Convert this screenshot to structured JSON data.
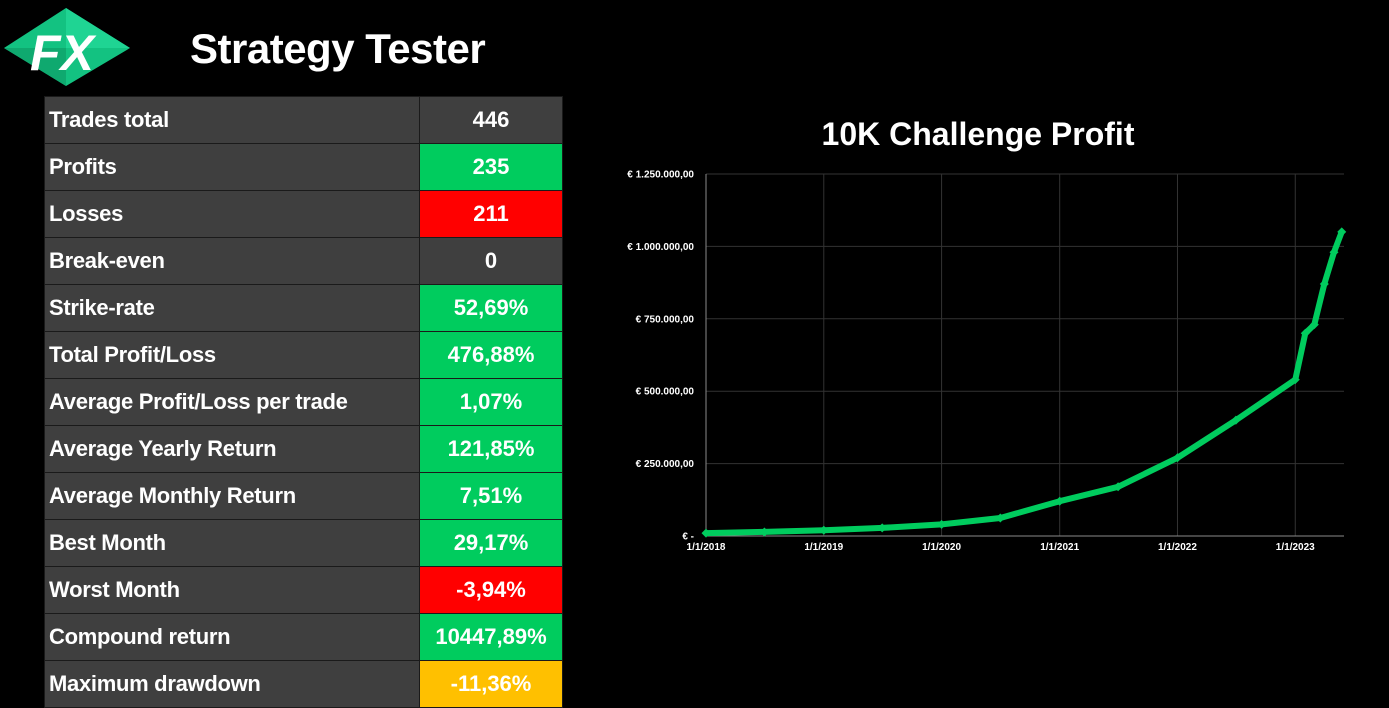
{
  "header": {
    "logo_text": "FX",
    "title": "Strategy Tester"
  },
  "colors": {
    "neutral": "#3f3f3f",
    "good": "#00cc5e",
    "bad": "#ff0000",
    "warn": "#ffc000",
    "series": "#00cc5e",
    "grid": "#333333"
  },
  "stats": [
    {
      "label": "Trades total",
      "value": "446",
      "status": "neutral"
    },
    {
      "label": "Profits",
      "value": "235",
      "status": "good"
    },
    {
      "label": "Losses",
      "value": "211",
      "status": "bad"
    },
    {
      "label": "Break-even",
      "value": "0",
      "status": "neutral"
    },
    {
      "label": "Strike-rate",
      "value": "52,69%",
      "status": "good"
    },
    {
      "label": "Total Profit/Loss",
      "value": "476,88%",
      "status": "good"
    },
    {
      "label": "Average Profit/Loss per trade",
      "value": "1,07%",
      "status": "good"
    },
    {
      "label": "Average Yearly Return",
      "value": "121,85%",
      "status": "good"
    },
    {
      "label": "Average Monthly Return",
      "value": "7,51%",
      "status": "good"
    },
    {
      "label": "Best Month",
      "value": "29,17%",
      "status": "good"
    },
    {
      "label": "Worst Month",
      "value": "-3,94%",
      "status": "bad"
    },
    {
      "label": "Compound return",
      "value": "10447,89%",
      "status": "good"
    },
    {
      "label": "Maximum drawdown",
      "value": "-11,36%",
      "status": "warn"
    }
  ],
  "chart_data": {
    "type": "scatter",
    "title": "10K Challenge Profit",
    "xlabel": "",
    "ylabel": "",
    "x_range": [
      "2018-01-01",
      "2023-06-01"
    ],
    "x_ticks": [
      "2018-01-01",
      "2019-01-01",
      "2020-01-01",
      "2021-01-01",
      "2022-01-01",
      "2023-01-01"
    ],
    "x_tick_labels": [
      "1/1/2018",
      "1/1/2019",
      "1/1/2020",
      "1/1/2021",
      "1/1/2022",
      "1/1/2023"
    ],
    "ylim": [
      0,
      1250000
    ],
    "y_ticks": [
      0,
      250000,
      500000,
      750000,
      1000000,
      1250000
    ],
    "y_tick_labels": [
      "€ -",
      "€ 250.000,00",
      "€ 500.000,00",
      "€ 750.000,00",
      "€ 1.000.000,00",
      "€ 1.250.000,00"
    ],
    "grid": true,
    "legend": false,
    "marker": "diamond",
    "anchor_points": [
      [
        "2018-01-01",
        10000
      ],
      [
        "2018-07-01",
        14000
      ],
      [
        "2019-01-01",
        20000
      ],
      [
        "2019-07-01",
        28000
      ],
      [
        "2020-01-01",
        40000
      ],
      [
        "2020-07-01",
        62000
      ],
      [
        "2021-01-01",
        120000
      ],
      [
        "2021-07-01",
        170000
      ],
      [
        "2022-01-01",
        270000
      ],
      [
        "2022-07-01",
        400000
      ],
      [
        "2023-01-01",
        540000
      ],
      [
        "2023-02-01",
        700000
      ],
      [
        "2023-03-01",
        730000
      ],
      [
        "2023-04-01",
        870000
      ],
      [
        "2023-05-01",
        980000
      ],
      [
        "2023-05-25",
        1050000
      ]
    ]
  }
}
